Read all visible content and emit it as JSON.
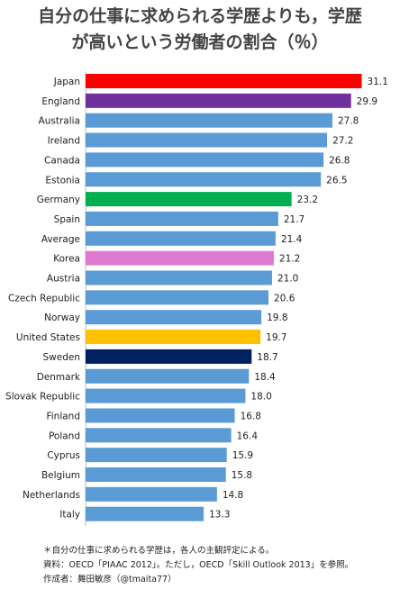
{
  "title_line1": "自分の仕事に求められる学歴よりも，学歴",
  "title_line2": "が高いという労働者の割合（％）",
  "notes": [
    "＊自分の仕事に求められる学歴は，各人の主観評定による。",
    "資料：OECD「PIAAC 2012」。ただし，OECD「Skill Outlook 2013」を参照。",
    "作成者：舞田敏彦（@tmaita77）"
  ],
  "colors": {
    "default": "#5b9bd5",
    "Japan": "#ff0000",
    "England": "#7030a0",
    "Germany": "#00b050",
    "Korea": "#e07ad0",
    "United States": "#ffc000",
    "Sweden": "#002060"
  },
  "chart_data": {
    "type": "bar",
    "orientation": "horizontal",
    "title": "自分の仕事に求められる学歴よりも，学歴が高いという労働者の割合（％）",
    "categories": [
      "Japan",
      "England",
      "Australia",
      "Ireland",
      "Canada",
      "Estonia",
      "Germany",
      "Spain",
      "Average",
      "Korea",
      "Austria",
      "Czech Republic",
      "Norway",
      "United States",
      "Sweden",
      "Denmark",
      "Slovak Republic",
      "Finland",
      "Poland",
      "Cyprus",
      "Belgium",
      "Netherlands",
      "Italy"
    ],
    "values": [
      31.1,
      29.9,
      27.8,
      27.2,
      26.8,
      26.5,
      23.2,
      21.7,
      21.4,
      21.2,
      21.0,
      20.6,
      19.8,
      19.7,
      18.7,
      18.4,
      18.0,
      16.8,
      16.4,
      15.9,
      15.8,
      14.8,
      13.3
    ],
    "value_labels": [
      "31.1",
      "29.9",
      "27.8",
      "27.2",
      "26.8",
      "26.5",
      "23.2",
      "21.7",
      "21.4",
      "21.2",
      "21.0",
      "20.6",
      "19.8",
      "19.7",
      "18.7",
      "18.4",
      "18.0",
      "16.8",
      "16.4",
      "15.9",
      "15.8",
      "14.8",
      "13.3"
    ],
    "xlim": [
      0,
      32
    ],
    "grid": false,
    "legend": "none"
  }
}
